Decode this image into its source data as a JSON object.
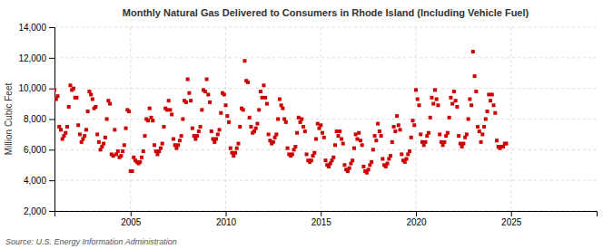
{
  "chart_data": {
    "type": "scatter",
    "title": "Monthly Natural Gas Delivered to Consumers in Rhode Island (Including Vehicle Fuel)",
    "ylabel": "Million Cubic Feet",
    "source": "Source: U.S. Energy Information Administration",
    "color": "#cc0000",
    "marker": "square",
    "grid": true,
    "xlim": [
      2001.0,
      2029.5
    ],
    "xticks": [
      2005,
      2010,
      2015,
      2020,
      2025
    ],
    "ylim": [
      2000,
      14000
    ],
    "yticks": [
      {
        "value": 2000,
        "label": "2,000"
      },
      {
        "value": 4000,
        "label": "4,000"
      },
      {
        "value": 6000,
        "label": "6,000"
      },
      {
        "value": 8000,
        "label": "8,000"
      },
      {
        "value": 10000,
        "label": "10,000"
      },
      {
        "value": 12000,
        "label": "12,000"
      },
      {
        "value": 14000,
        "label": "14,000"
      }
    ],
    "x": [
      2001,
      2001.0833333333333,
      2001.1666666666667,
      2001.25,
      2001.3333333333333,
      2001.4166666666667,
      2001.5,
      2001.5833333333333,
      2001.6666666666667,
      2001.75,
      2001.8333333333333,
      2001.9166666666667,
      2002,
      2002.0833333333333,
      2002.1666666666667,
      2002.25,
      2002.3333333333333,
      2002.4166666666667,
      2002.5,
      2002.5833333333333,
      2002.6666666666667,
      2002.75,
      2002.8333333333333,
      2002.9166666666667,
      2003,
      2003.0833333333333,
      2003.1666666666667,
      2003.25,
      2003.3333333333333,
      2003.4166666666667,
      2003.5,
      2003.5833333333333,
      2003.6666666666667,
      2003.75,
      2003.8333333333333,
      2003.9166666666667,
      2004,
      2004.0833333333333,
      2004.1666666666667,
      2004.25,
      2004.3333333333333,
      2004.4166666666667,
      2004.5,
      2004.5833333333333,
      2004.6666666666667,
      2004.75,
      2004.8333333333333,
      2004.9166666666667,
      2005,
      2005.0833333333333,
      2005.1666666666667,
      2005.25,
      2005.3333333333333,
      2005.4166666666667,
      2005.5,
      2005.5833333333333,
      2005.6666666666667,
      2005.75,
      2005.8333333333333,
      2005.9166666666667,
      2006,
      2006.0833333333333,
      2006.1666666666667,
      2006.25,
      2006.3333333333333,
      2006.4166666666667,
      2006.5,
      2006.5833333333333,
      2006.6666666666667,
      2006.75,
      2006.8333333333333,
      2006.9166666666667,
      2007,
      2007.0833333333333,
      2007.1666666666667,
      2007.25,
      2007.3333333333333,
      2007.4166666666667,
      2007.5,
      2007.5833333333333,
      2007.6666666666667,
      2007.75,
      2007.8333333333333,
      2007.9166666666667,
      2008,
      2008.0833333333333,
      2008.1666666666667,
      2008.25,
      2008.3333333333333,
      2008.4166666666667,
      2008.5,
      2008.5833333333333,
      2008.6666666666667,
      2008.75,
      2008.8333333333333,
      2008.9166666666667,
      2009,
      2009.0833333333333,
      2009.1666666666667,
      2009.25,
      2009.3333333333333,
      2009.4166666666667,
      2009.5,
      2009.5833333333333,
      2009.6666666666667,
      2009.75,
      2009.8333333333333,
      2009.9166666666667,
      2010,
      2010.0833333333333,
      2010.1666666666667,
      2010.25,
      2010.3333333333333,
      2010.4166666666667,
      2010.5,
      2010.5833333333333,
      2010.6666666666667,
      2010.75,
      2010.8333333333333,
      2010.9166666666667,
      2011,
      2011.0833333333333,
      2011.1666666666667,
      2011.25,
      2011.3333333333333,
      2011.4166666666667,
      2011.5,
      2011.5833333333333,
      2011.6666666666667,
      2011.75,
      2011.8333333333333,
      2011.9166666666667,
      2012,
      2012.0833333333333,
      2012.1666666666667,
      2012.25,
      2012.3333333333333,
      2012.4166666666667,
      2012.5,
      2012.5833333333333,
      2012.6666666666667,
      2012.75,
      2012.8333333333333,
      2012.9166666666667,
      2013,
      2013.0833333333333,
      2013.1666666666667,
      2013.25,
      2013.3333333333333,
      2013.4166666666667,
      2013.5,
      2013.5833333333333,
      2013.6666666666667,
      2013.75,
      2013.8333333333333,
      2013.9166666666667,
      2014,
      2014.0833333333333,
      2014.1666666666667,
      2014.25,
      2014.3333333333333,
      2014.4166666666667,
      2014.5,
      2014.5833333333333,
      2014.6666666666667,
      2014.75,
      2014.8333333333333,
      2014.9166666666667,
      2015,
      2015.0833333333333,
      2015.1666666666667,
      2015.25,
      2015.3333333333333,
      2015.4166666666667,
      2015.5,
      2015.5833333333333,
      2015.6666666666667,
      2015.75,
      2015.8333333333333,
      2015.9166666666667,
      2016,
      2016.0833333333333,
      2016.1666666666667,
      2016.25,
      2016.3333333333333,
      2016.4166666666667,
      2016.5,
      2016.5833333333333,
      2016.6666666666667,
      2016.75,
      2016.8333333333333,
      2016.9166666666667,
      2017,
      2017.0833333333333,
      2017.1666666666667,
      2017.25,
      2017.3333333333333,
      2017.4166666666667,
      2017.5,
      2017.5833333333333,
      2017.6666666666667,
      2017.75,
      2017.8333333333333,
      2017.9166666666667,
      2018,
      2018.0833333333333,
      2018.1666666666667,
      2018.25,
      2018.3333333333333,
      2018.4166666666667,
      2018.5,
      2018.5833333333333,
      2018.6666666666667,
      2018.75,
      2018.8333333333333,
      2018.9166666666667,
      2019,
      2019.0833333333333,
      2019.1666666666667,
      2019.25,
      2019.3333333333333,
      2019.4166666666667,
      2019.5,
      2019.5833333333333,
      2019.6666666666667,
      2019.75,
      2019.8333333333333,
      2019.9166666666667,
      2020,
      2020.0833333333333,
      2020.1666666666667,
      2020.25,
      2020.3333333333333,
      2020.4166666666667,
      2020.5,
      2020.5833333333333,
      2020.6666666666667,
      2020.75,
      2020.8333333333333,
      2020.9166666666667,
      2021,
      2021.0833333333333,
      2021.1666666666667,
      2021.25,
      2021.3333333333333,
      2021.4166666666667,
      2021.5,
      2021.5833333333333,
      2021.6666666666667,
      2021.75,
      2021.8333333333333,
      2021.9166666666667,
      2022,
      2022.0833333333333,
      2022.1666666666667,
      2022.25,
      2022.3333333333333,
      2022.4166666666667,
      2022.5,
      2022.5833333333333,
      2022.6666666666667,
      2022.75,
      2022.8333333333333,
      2022.9166666666667,
      2023,
      2023.0833333333333,
      2023.1666666666667,
      2023.25,
      2023.3333333333333,
      2023.4166666666667,
      2023.5,
      2023.5833333333333,
      2023.6666666666667,
      2023.75,
      2023.8333333333333,
      2023.9166666666667,
      2024,
      2024.0833333333333,
      2024.1666666666667,
      2024.25,
      2024.3333333333333,
      2024.4166666666667,
      2024.5,
      2024.5833333333333,
      2024.6666666666667,
      2024.75
    ],
    "values": [
      9900,
      9300,
      9500,
      7500,
      7300,
      6700,
      6900,
      7100,
      7500,
      8800,
      10200,
      9900,
      10000,
      9400,
      9400,
      7600,
      7000,
      6500,
      6700,
      6900,
      7300,
      8500,
      9800,
      9600,
      9300,
      8700,
      8800,
      7000,
      6500,
      6000,
      6200,
      6400,
      6800,
      8000,
      9200,
      9000,
      5700,
      5600,
      7300,
      5700,
      5900,
      5500,
      5600,
      5900,
      6300,
      7400,
      8600,
      8500,
      4600,
      4600,
      5500,
      5300,
      5200,
      5100,
      5200,
      5500,
      5900,
      6900,
      8000,
      7900,
      8700,
      8100,
      7900,
      6300,
      5900,
      5700,
      5900,
      6100,
      6400,
      7500,
      8700,
      8600,
      9200,
      8600,
      8300,
      6700,
      6300,
      6100,
      6300,
      6600,
      6900,
      8000,
      9200,
      9100,
      10600,
      9700,
      9200,
      7400,
      6900,
      6700,
      6900,
      7200,
      7500,
      8600,
      9900,
      9800,
      10600,
      9600,
      9100,
      7200,
      6700,
      6500,
      6700,
      7000,
      7300,
      8400,
      9700,
      9600,
      8900,
      8200,
      7800,
      6100,
      5800,
      5600,
      5800,
      6100,
      6400,
      7500,
      8700,
      8600,
      11800,
      10500,
      10400,
      8100,
      7500,
      7100,
      7200,
      7400,
      7700,
      8600,
      9800,
      9400,
      10200,
      9400,
      9000,
      7000,
      6600,
      6400,
      6500,
      6800,
      7000,
      8000,
      9300,
      8900,
      8700,
      8000,
      7800,
      6100,
      5700,
      5600,
      5700,
      6000,
      6200,
      7100,
      8100,
      7800,
      8000,
      7500,
      7200,
      5700,
      5300,
      5200,
      5300,
      5600,
      5800,
      6700,
      7700,
      7400,
      7600,
      7100,
      6800,
      5300,
      5000,
      4900,
      5100,
      5300,
      5500,
      6300,
      7200,
      6900,
      7200,
      6700,
      6400,
      5000,
      4700,
      4600,
      4800,
      5100,
      5300,
      6100,
      7000,
      6700,
      7100,
      6600,
      6300,
      4900,
      4600,
      4500,
      4700,
      5000,
      5200,
      6000,
      6900,
      6600,
      7700,
      7200,
      6900,
      5400,
      5000,
      4900,
      5100,
      5400,
      5600,
      6500,
      7500,
      7200,
      8200,
      7600,
      7300,
      5700,
      5300,
      5200,
      5400,
      5700,
      5900,
      6800,
      7900,
      7600,
      9900,
      9300,
      8900,
      7000,
      6500,
      6300,
      6500,
      6900,
      7100,
      8100,
      9400,
      9000,
      9900,
      9300,
      8900,
      7000,
      6500,
      6300,
      6500,
      6900,
      7100,
      8100,
      9400,
      9000,
      9800,
      9200,
      8800,
      6900,
      6400,
      6200,
      6400,
      6800,
      7000,
      8000,
      9300,
      8900,
      12400,
      10800,
      9800,
      7500,
      7200,
      6500,
      7000,
      7500,
      8000,
      8500,
      9600,
      9200,
      9600,
      8900,
      8400,
      6600,
      6200,
      6100,
      6200,
      6200,
      6400,
      6400
    ]
  }
}
